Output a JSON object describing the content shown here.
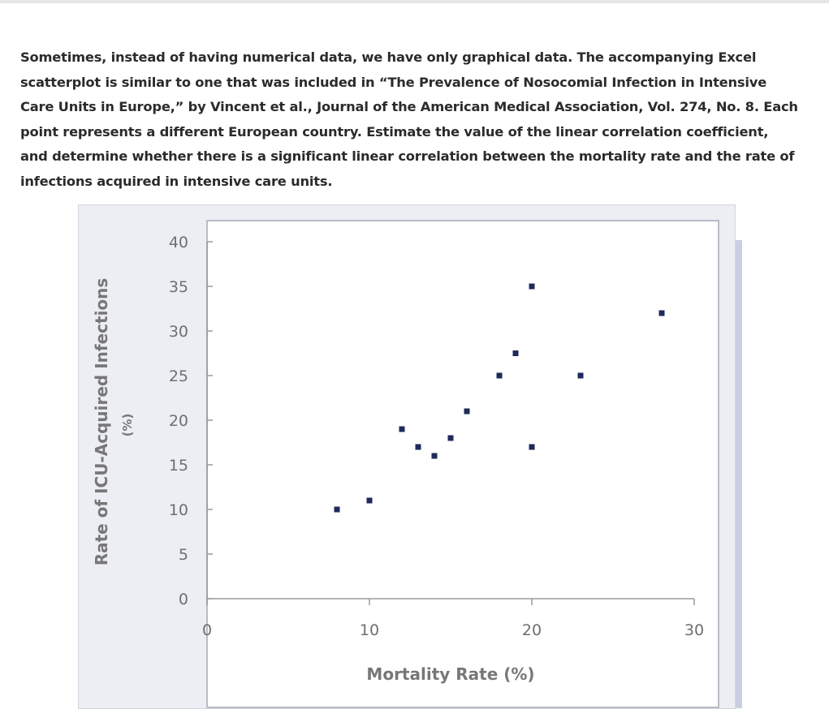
{
  "question": {
    "text": "Sometimes, instead of having numerical data, we have only graphical data. The accompanying Excel scatterplot is similar to one that was included in “The Prevalence of Nosocomial Infection in Intensive Care Units in Europe,” by Vincent et al., Journal of the American Medical Association, Vol. 274, No. 8. Each point represents a different European country. Estimate the value of the linear correlation coefficient, and determine whether there is a significant linear correlation between the mortality rate and the rate of infections acquired in intensive care units."
  },
  "chart_data": {
    "type": "scatter",
    "xlabel": "Mortality Rate (%)",
    "ylabel": "Rate of ICU-Acquired Infections",
    "ylabel_unit": "(%)",
    "xlim": [
      0,
      30
    ],
    "ylim": [
      0,
      40
    ],
    "x_ticks": [
      "0",
      "10",
      "20",
      "30"
    ],
    "y_ticks": [
      "0",
      "5",
      "10",
      "15",
      "20",
      "25",
      "30",
      "35",
      "40"
    ],
    "grid": false,
    "point_color": "#1f2a5a",
    "points": [
      {
        "x": 8,
        "y": 10
      },
      {
        "x": 10,
        "y": 11
      },
      {
        "x": 12,
        "y": 19
      },
      {
        "x": 13,
        "y": 17
      },
      {
        "x": 14,
        "y": 16
      },
      {
        "x": 15,
        "y": 18
      },
      {
        "x": 16,
        "y": 21
      },
      {
        "x": 18,
        "y": 25
      },
      {
        "x": 19,
        "y": 27.5
      },
      {
        "x": 20,
        "y": 35
      },
      {
        "x": 20,
        "y": 17
      },
      {
        "x": 23,
        "y": 25
      },
      {
        "x": 28,
        "y": 32
      }
    ]
  }
}
